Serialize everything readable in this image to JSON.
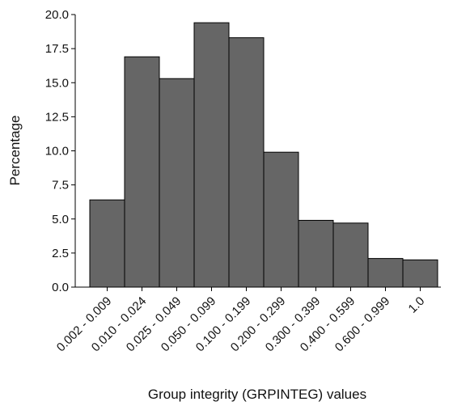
{
  "chart_data": {
    "type": "bar",
    "x_label": "Group integrity (GRPINTEG) values",
    "y_label": "Percentage",
    "categories": [
      "0.002 - 0.009",
      "0.010 - 0.024",
      "0.025 - 0.049",
      "0.050 - 0.099",
      "0.100 - 0.199",
      "0.200 - 0.299",
      "0.300 - 0.399",
      "0.400 - 0.599",
      "0.600 - 0.999",
      "1.0"
    ],
    "values": [
      6.4,
      16.9,
      15.3,
      19.4,
      18.3,
      9.9,
      4.9,
      4.7,
      2.1,
      2.0
    ],
    "color": "#666666",
    "ylim": [
      0,
      20
    ],
    "yticks": [
      {
        "value": 0,
        "label": "0.0"
      },
      2.5,
      {
        "value": 5,
        "label": "5.0"
      },
      7.5,
      {
        "value": 10,
        "label": "10.0"
      },
      12.5,
      {
        "value": 15,
        "label": "15.0"
      },
      17.5,
      {
        "value": 20,
        "label": "20.0"
      }
    ],
    "grid": false
  }
}
